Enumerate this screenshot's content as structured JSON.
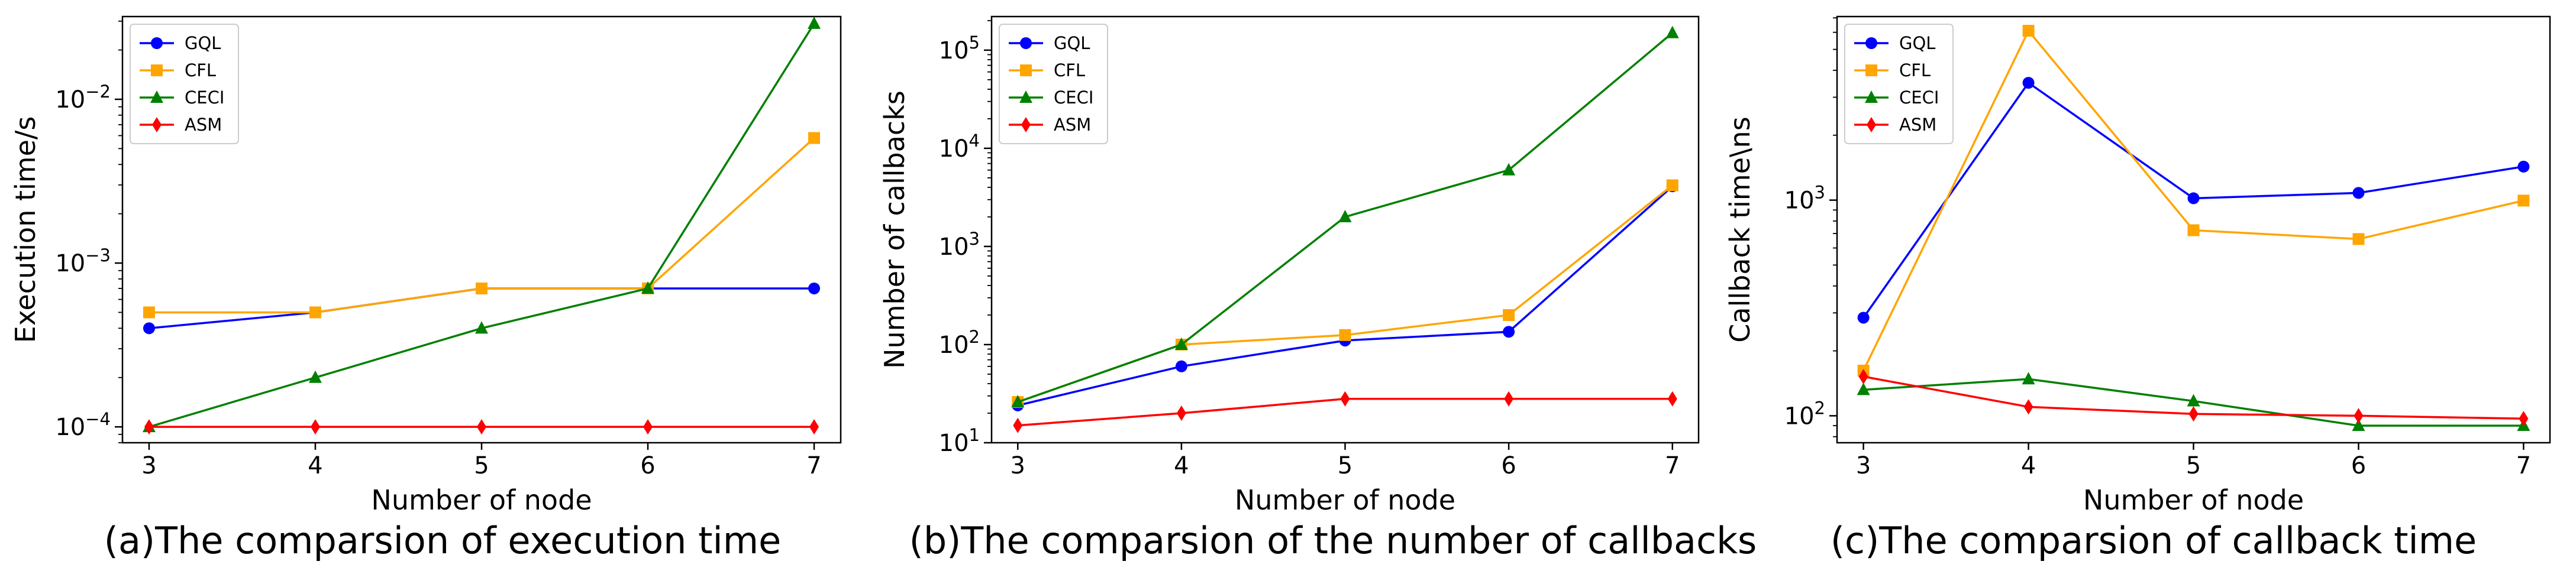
{
  "chart_data": [
    {
      "type": "line",
      "caption": "(a)The comparsion of execution time",
      "xlabel": "Number of node",
      "ylabel": "Execution time/s",
      "yscale": "log",
      "ylim": [
        8e-05,
        0.032
      ],
      "x": [
        3,
        4,
        5,
        6,
        7
      ],
      "yticks": [
        0.0001,
        0.001,
        0.01
      ],
      "ytick_labels": [
        {
          "base": "10",
          "exp": "−4"
        },
        {
          "base": "10",
          "exp": "−3"
        },
        {
          "base": "10",
          "exp": "−2"
        }
      ],
      "legend_position": "top-left",
      "series": [
        {
          "name": "GQL",
          "color": "#0000ff",
          "marker": "circle",
          "values": [
            0.0004,
            0.0005,
            0.0007,
            0.0007,
            0.0007
          ]
        },
        {
          "name": "CFL",
          "color": "#ffa500",
          "marker": "square",
          "values": [
            0.0005,
            0.0005,
            0.0007,
            0.0007,
            0.0058
          ]
        },
        {
          "name": "CECI",
          "color": "#008000",
          "marker": "triangle",
          "values": [
            0.0001,
            0.0002,
            0.0004,
            0.0007,
            0.029
          ]
        },
        {
          "name": "ASM",
          "color": "#ff0000",
          "marker": "diamond",
          "values": [
            0.0001,
            0.0001,
            0.0001,
            0.0001,
            0.0001
          ]
        }
      ]
    },
    {
      "type": "line",
      "caption": "(b)The comparsion of the number of callbacks",
      "xlabel": "Number of node",
      "ylabel": "Number of callbacks",
      "yscale": "log",
      "ylim": [
        10,
        220000
      ],
      "x": [
        3,
        4,
        5,
        6,
        7
      ],
      "yticks": [
        10,
        100,
        1000,
        10000,
        100000
      ],
      "ytick_labels": [
        {
          "base": "10",
          "exp": "1"
        },
        {
          "base": "10",
          "exp": "2"
        },
        {
          "base": "10",
          "exp": "3"
        },
        {
          "base": "10",
          "exp": "4"
        },
        {
          "base": "10",
          "exp": "5"
        }
      ],
      "legend_position": "top-left",
      "series": [
        {
          "name": "GQL",
          "color": "#0000ff",
          "marker": "circle",
          "values": [
            24,
            60,
            110,
            135,
            4100
          ]
        },
        {
          "name": "CFL",
          "color": "#ffa500",
          "marker": "square",
          "values": [
            26,
            100,
            125,
            200,
            4200
          ]
        },
        {
          "name": "CECI",
          "color": "#008000",
          "marker": "triangle",
          "values": [
            26,
            100,
            2000,
            6000,
            150000
          ]
        },
        {
          "name": "ASM",
          "color": "#ff0000",
          "marker": "diamond",
          "values": [
            15,
            20,
            28,
            28,
            28
          ]
        }
      ]
    },
    {
      "type": "line",
      "caption": "(c)The comparsion of callback time",
      "xlabel": "Number of node",
      "ylabel": "Callback time\\ns",
      "yscale": "log",
      "ylim": [
        75,
        7100
      ],
      "x": [
        3,
        4,
        5,
        6,
        7
      ],
      "yticks": [
        100,
        1000
      ],
      "ytick_labels": [
        {
          "base": "10",
          "exp": "2"
        },
        {
          "base": "10",
          "exp": "3"
        }
      ],
      "legend_position": "top-left",
      "series": [
        {
          "name": "GQL",
          "color": "#0000ff",
          "marker": "circle",
          "values": [
            285,
            3500,
            1020,
            1080,
            1430
          ]
        },
        {
          "name": "CFL",
          "color": "#ffa500",
          "marker": "square",
          "values": [
            162,
            6100,
            725,
            660,
            995
          ]
        },
        {
          "name": "CECI",
          "color": "#008000",
          "marker": "triangle",
          "values": [
            132,
            148,
            117,
            90,
            90
          ]
        },
        {
          "name": "ASM",
          "color": "#ff0000",
          "marker": "diamond",
          "values": [
            152,
            110,
            102,
            100,
            97
          ]
        }
      ]
    }
  ]
}
